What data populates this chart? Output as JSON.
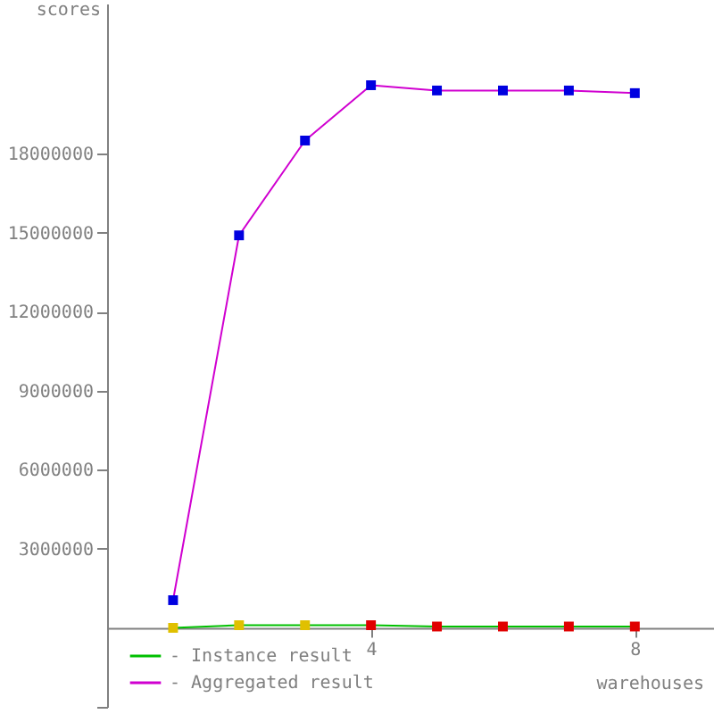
{
  "chart_data": {
    "type": "line",
    "xlabel": "warehouses",
    "ylabel": "scores",
    "x": [
      1,
      2,
      3,
      4,
      5,
      6,
      7,
      8
    ],
    "series": [
      {
        "name": "- Instance result",
        "color": "#00c000",
        "colors": [
          "#e0c000",
          "#e0c000",
          "#e0c000",
          "#e00000",
          "#e00000",
          "#e00000",
          "#e00000",
          "#e00000"
        ],
        "values": [
          0,
          100000,
          100000,
          100000,
          50000,
          50000,
          50000,
          50000
        ]
      },
      {
        "name": "- Aggregated result",
        "color": "#d000d0",
        "colors": [
          "#0000e0",
          "#0000e0",
          "#0000e0",
          "#0000e0",
          "#0000e0",
          "#0000e0",
          "#0000e0",
          "#0000e0"
        ],
        "values": [
          1050000,
          14900000,
          18500000,
          20600000,
          20400000,
          20400000,
          20400000,
          20300000
        ]
      }
    ],
    "xlim": [
      0,
      9.2
    ],
    "xticks": [
      4,
      8
    ],
    "ylim": [
      -3000000,
      23700000
    ],
    "yticks": [
      {
        "value": -3000000,
        "label": null
      },
      3000000,
      6000000,
      9000000,
      12000000,
      15000000,
      18000000
    ],
    "marker": "square",
    "line_style": "solid",
    "grid": false,
    "legend": "bottom left"
  }
}
